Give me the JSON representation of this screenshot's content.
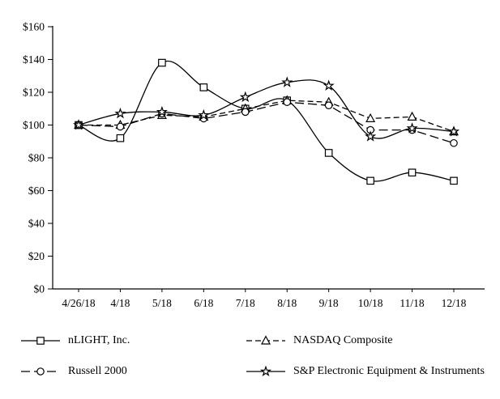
{
  "chart_data": {
    "type": "line",
    "title": "",
    "categories": [
      "4/26/18",
      "4/18",
      "5/18",
      "6/18",
      "7/18",
      "8/18",
      "9/18",
      "10/18",
      "11/18",
      "12/18"
    ],
    "series": [
      {
        "name": "nLIGHT, Inc.",
        "marker": "square",
        "dash": "solid",
        "smooth": true,
        "values": [
          100,
          92,
          138,
          123,
          110,
          115,
          83,
          66,
          71,
          66
        ]
      },
      {
        "name": "NASDAQ Composite",
        "marker": "triangle",
        "dash": "7 4",
        "smooth": false,
        "values": [
          100,
          100,
          106,
          105,
          110,
          115,
          114,
          104,
          105,
          96
        ]
      },
      {
        "name": "Russell 2000",
        "marker": "circle",
        "dash": "11 5",
        "smooth": false,
        "values": [
          100,
          99,
          107,
          104,
          108,
          114,
          112,
          97,
          97,
          89
        ]
      },
      {
        "name": "S&P Electronic Equipment & Instruments",
        "marker": "star",
        "dash": "solid",
        "smooth": true,
        "values": [
          100,
          107,
          108,
          106,
          117,
          126,
          124,
          93,
          98,
          96
        ]
      }
    ],
    "ylim": [
      0,
      160
    ],
    "ytick_step": 20,
    "ytick_labels": [
      "$0",
      "$20",
      "$40",
      "$60",
      "$80",
      "$100",
      "$120",
      "$140",
      "$160"
    ],
    "line_color": "#000000",
    "background_color": "#ffffff",
    "grid": "off",
    "legend_position": "bottom"
  }
}
